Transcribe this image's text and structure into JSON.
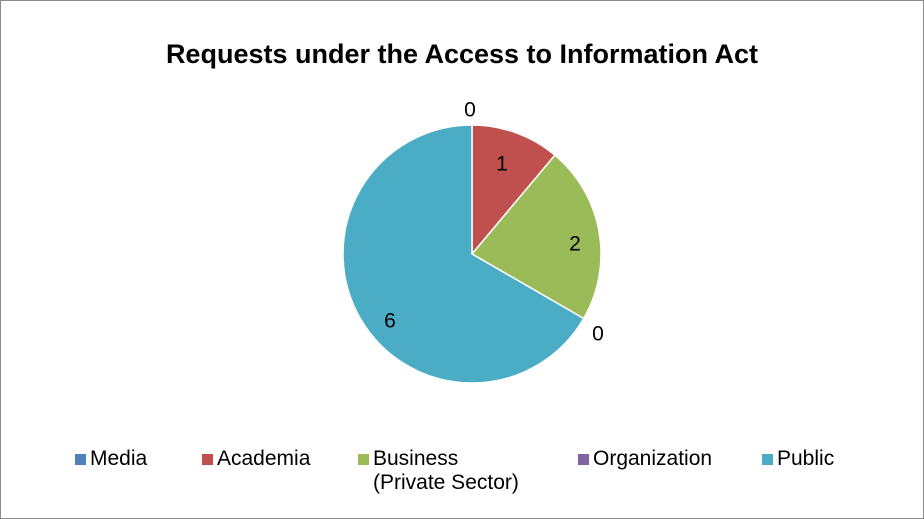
{
  "chart_data": {
    "type": "pie",
    "title": "Requests under the Access to Information Act",
    "categories": [
      "Media",
      "Academia",
      "Business (Private Sector)",
      "Organization",
      "Public"
    ],
    "values": [
      0,
      1,
      2,
      0,
      6
    ],
    "data_labels": [
      "0",
      "1",
      "2",
      "0",
      "6"
    ],
    "legend": {
      "position": "bottom",
      "entries": [
        {
          "label": "Media",
          "color": "#4f81bd"
        },
        {
          "label": "Academia",
          "color": "#c0504d"
        },
        {
          "label": "Business\n(Private Sector)",
          "color": "#9bbb59"
        },
        {
          "label": "Organization",
          "color": "#8064a2"
        },
        {
          "label": "Public",
          "color": "#4bacc6"
        }
      ]
    },
    "colors": [
      "#4f81bd",
      "#c0504d",
      "#9bbb59",
      "#8064a2",
      "#4bacc6"
    ]
  }
}
